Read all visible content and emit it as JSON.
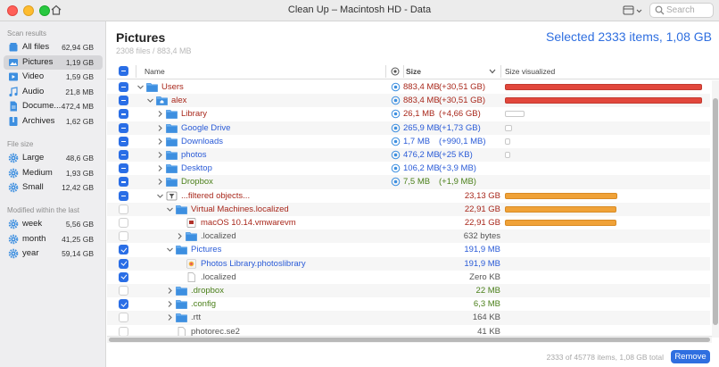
{
  "window": {
    "title": "Clean Up – Macintosh HD - Data",
    "search_placeholder": "Search"
  },
  "sidebar": {
    "scan_results_header": "Scan results",
    "scan_results": [
      {
        "label": "All files",
        "size": "62,94 GB",
        "icon": "stack-icon",
        "selected": false
      },
      {
        "label": "Pictures",
        "size": "1,19 GB",
        "icon": "picture-icon",
        "selected": true
      },
      {
        "label": "Video",
        "size": "1,59 GB",
        "icon": "video-icon",
        "selected": false
      },
      {
        "label": "Audio",
        "size": "21,8 MB",
        "icon": "music-note-icon",
        "selected": false
      },
      {
        "label": "Docume...",
        "size": "472,4 MB",
        "icon": "document-icon",
        "selected": false
      },
      {
        "label": "Archives",
        "size": "1,62 GB",
        "icon": "archive-icon",
        "selected": false
      }
    ],
    "file_size_header": "File size",
    "file_size": [
      {
        "label": "Large",
        "size": "48,6 GB",
        "icon": "gear-icon"
      },
      {
        "label": "Medium",
        "size": "1,93 GB",
        "icon": "gear-icon"
      },
      {
        "label": "Small",
        "size": "12,42 GB",
        "icon": "gear-icon"
      }
    ],
    "modified_header": "Modified within the last",
    "modified": [
      {
        "label": "week",
        "size": "5,56 GB",
        "icon": "gear-icon"
      },
      {
        "label": "month",
        "size": "41,25 GB",
        "icon": "gear-icon"
      },
      {
        "label": "year",
        "size": "59,14 GB",
        "icon": "gear-icon"
      }
    ]
  },
  "main": {
    "title": "Pictures",
    "subtitle": "2308 files / 883,4 MB",
    "selection_summary": "Selected 2333 items, 1,08 GB"
  },
  "table": {
    "columns": {
      "name": "Name",
      "size": "Size",
      "size_visualized": "Size visualized"
    },
    "rows": [
      {
        "checkbox": "minus",
        "indent": 0,
        "chevron": "down",
        "icon": "folder",
        "name": "Users",
        "name_color": "red",
        "scan": true,
        "size": "883,4 MB",
        "size_color": "red",
        "delta": "(+30,51 GB)",
        "delta_color": "red",
        "bar": "red",
        "bar_fraction": 1.0
      },
      {
        "checkbox": "minus",
        "indent": 1,
        "chevron": "down",
        "icon": "home-folder",
        "name": "alex",
        "name_color": "red",
        "scan": true,
        "size": "883,4 MB",
        "size_color": "red",
        "delta": "(+30,51 GB)",
        "delta_color": "red",
        "bar": "red",
        "bar_fraction": 1.0
      },
      {
        "checkbox": "minus",
        "indent": 2,
        "chevron": "right",
        "icon": "folder",
        "name": "Library",
        "name_color": "red",
        "scan": true,
        "size": "26,1 MB",
        "size_color": "red",
        "delta": "(+4,66 GB)",
        "delta_color": "red",
        "bar": "outline",
        "bar_fraction": 0.13
      },
      {
        "checkbox": "minus",
        "indent": 2,
        "chevron": "right",
        "icon": "folder",
        "name": "Google Drive",
        "name_color": "blue",
        "scan": true,
        "size": "265,9 MB",
        "size_color": "blue",
        "delta": "(+1,73 GB)",
        "delta_color": "blue",
        "bar": "outline",
        "bar_fraction": 0.05
      },
      {
        "checkbox": "minus",
        "indent": 2,
        "chevron": "right",
        "icon": "folder",
        "name": "Downloads",
        "name_color": "blue",
        "scan": true,
        "size": "1,7 MB",
        "size_color": "blue",
        "delta": "(+990,1 MB)",
        "delta_color": "blue",
        "bar": "outline",
        "bar_fraction": 0.02
      },
      {
        "checkbox": "minus",
        "indent": 2,
        "chevron": "right",
        "icon": "folder",
        "name": "photos",
        "name_color": "blue",
        "scan": true,
        "size": "476,2 MB",
        "size_color": "blue",
        "delta": "(+25 KB)",
        "delta_color": "blue",
        "bar": "outline",
        "bar_fraction": 0.01
      },
      {
        "checkbox": "minus",
        "indent": 2,
        "chevron": "right",
        "icon": "folder",
        "name": "Desktop",
        "name_color": "blue",
        "scan": true,
        "size": "106,2 MB",
        "size_color": "blue",
        "delta": "(+3,9 MB)",
        "delta_color": "blue",
        "bar": "none",
        "bar_fraction": 0
      },
      {
        "checkbox": "minus",
        "indent": 2,
        "chevron": "right",
        "icon": "folder",
        "name": "Dropbox",
        "name_color": "green",
        "scan": true,
        "size": "7,5 MB",
        "size_color": "green",
        "delta": "(+1,9 MB)",
        "delta_color": "green",
        "bar": "none",
        "bar_fraction": 0
      },
      {
        "checkbox": "minus",
        "indent": 2,
        "chevron": "down",
        "icon": "filter",
        "name": "...filtered objects...",
        "name_color": "red",
        "scan": false,
        "size": "23,13 GB",
        "size_color": "red",
        "delta": "",
        "delta_color": "red",
        "bar": "orange",
        "bar_fraction": 0.76
      },
      {
        "checkbox": "empty",
        "indent": 3,
        "chevron": "down",
        "icon": "folder",
        "name": "Virtual Machines.localized",
        "name_color": "red",
        "scan": false,
        "size": "22,91 GB",
        "size_color": "red",
        "delta": "",
        "delta_color": "red",
        "bar": "orange",
        "bar_fraction": 0.75
      },
      {
        "checkbox": "empty",
        "indent": 4,
        "chevron": "none",
        "icon": "vm-file",
        "name": "macOS 10.14.vmwarevm",
        "name_color": "red",
        "scan": false,
        "size": "22,91 GB",
        "size_color": "red",
        "delta": "",
        "delta_color": "red",
        "bar": "orange",
        "bar_fraction": 0.75
      },
      {
        "checkbox": "empty",
        "indent": 4,
        "chevron": "right",
        "icon": "folder",
        "name": ".localized",
        "name_color": "gray",
        "scan": false,
        "size": "632 bytes",
        "size_color": "gray",
        "delta": "",
        "delta_color": "gray",
        "bar": "none",
        "bar_fraction": 0
      },
      {
        "checkbox": "check",
        "indent": 3,
        "chevron": "down",
        "icon": "folder",
        "name": "Pictures",
        "name_color": "blue",
        "scan": false,
        "size": "191,9 MB",
        "size_color": "blue",
        "delta": "",
        "delta_color": "blue",
        "bar": "none",
        "bar_fraction": 0
      },
      {
        "checkbox": "check",
        "indent": 4,
        "chevron": "none",
        "icon": "photos-library",
        "name": "Photos Library.photoslibrary",
        "name_color": "blue",
        "scan": false,
        "size": "191,9 MB",
        "size_color": "blue",
        "delta": "",
        "delta_color": "blue",
        "bar": "none",
        "bar_fraction": 0
      },
      {
        "checkbox": "check",
        "indent": 4,
        "chevron": "none",
        "icon": "blank-file",
        "name": ".localized",
        "name_color": "gray",
        "scan": false,
        "size": "Zero KB",
        "size_color": "gray",
        "delta": "",
        "delta_color": "gray",
        "bar": "none",
        "bar_fraction": 0
      },
      {
        "checkbox": "empty",
        "indent": 3,
        "chevron": "right",
        "icon": "folder",
        "name": ".dropbox",
        "name_color": "green",
        "scan": false,
        "size": "22 MB",
        "size_color": "green",
        "delta": "",
        "delta_color": "green",
        "bar": "none",
        "bar_fraction": 0
      },
      {
        "checkbox": "check",
        "indent": 3,
        "chevron": "right",
        "icon": "folder",
        "name": ".config",
        "name_color": "green",
        "scan": false,
        "size": "6,3 MB",
        "size_color": "green",
        "delta": "",
        "delta_color": "green",
        "bar": "none",
        "bar_fraction": 0
      },
      {
        "checkbox": "empty",
        "indent": 3,
        "chevron": "right",
        "icon": "folder",
        "name": ".rtt",
        "name_color": "gray",
        "scan": false,
        "size": "164 KB",
        "size_color": "gray",
        "delta": "",
        "delta_color": "gray",
        "bar": "none",
        "bar_fraction": 0
      },
      {
        "checkbox": "empty",
        "indent": 3,
        "chevron": "none",
        "icon": "blank-file",
        "name": "photorec.se2",
        "name_color": "gray",
        "scan": false,
        "size": "41 KB",
        "size_color": "gray",
        "delta": "",
        "delta_color": "gray",
        "bar": "none",
        "bar_fraction": 0
      }
    ]
  },
  "footer": {
    "status": "2333 of 45778 items, 1,08 GB total",
    "remove_label": "Remove"
  },
  "colors": {
    "accent": "#2f6fe0",
    "red": "#a8271b",
    "blue": "#2a5bd7",
    "green": "#4a7f19",
    "bar_red": "#e2473c",
    "bar_orange": "#f0a238"
  }
}
